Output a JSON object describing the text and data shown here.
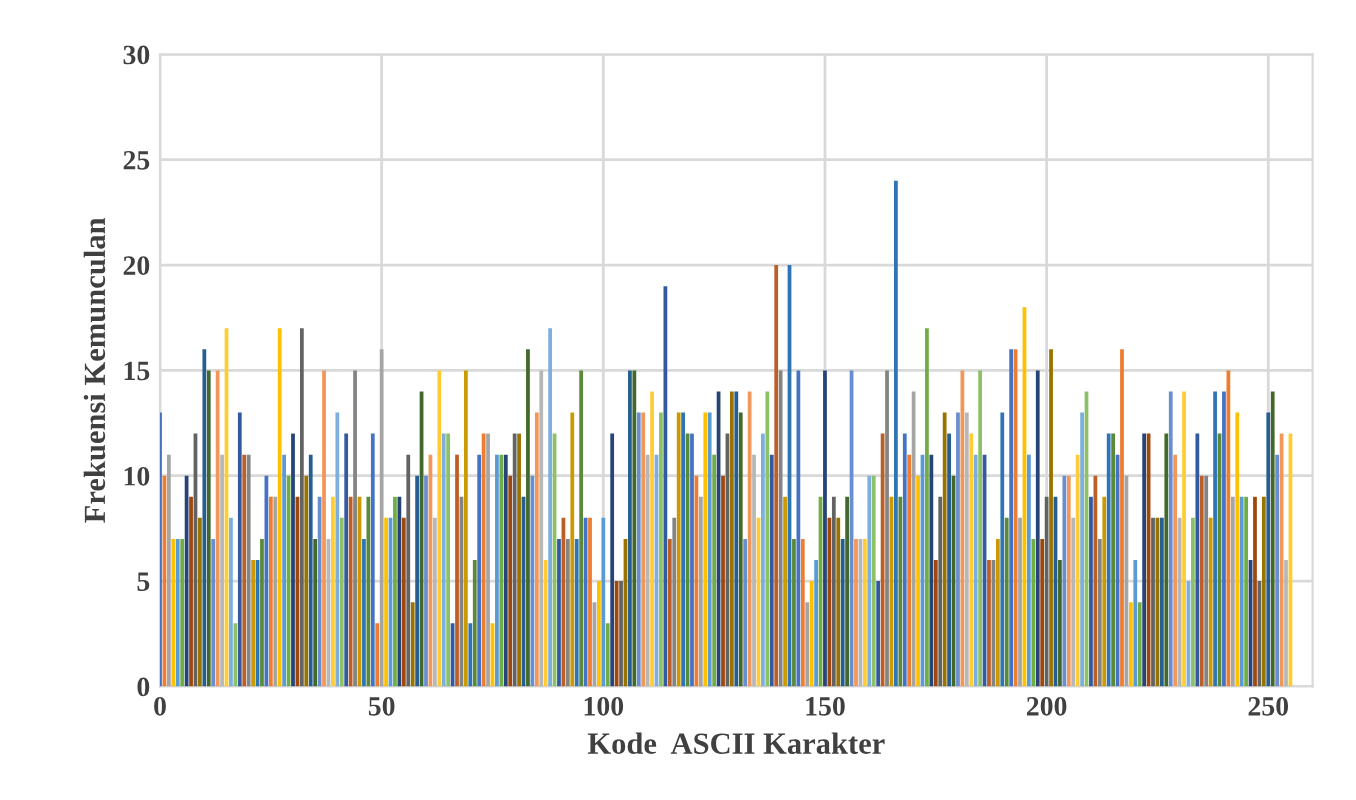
{
  "chart_data": {
    "type": "bar",
    "xlabel": "Kode  ASCII Karakter",
    "ylabel": "Frekuensi Kemunculan",
    "x": [
      0,
      1,
      2,
      3,
      4,
      5,
      6,
      7,
      8,
      9,
      10,
      11,
      12,
      13,
      14,
      15,
      16,
      17,
      18,
      19,
      20,
      21,
      22,
      23,
      24,
      25,
      26,
      27,
      28,
      29,
      30,
      31,
      32,
      33,
      34,
      35,
      36,
      37,
      38,
      39,
      40,
      41,
      42,
      43,
      44,
      45,
      46,
      47,
      48,
      49,
      50,
      51,
      52,
      53,
      54,
      55,
      56,
      57,
      58,
      59,
      60,
      61,
      62,
      63,
      64,
      65,
      66,
      67,
      68,
      69,
      70,
      71,
      72,
      73,
      74,
      75,
      76,
      77,
      78,
      79,
      80,
      81,
      82,
      83,
      84,
      85,
      86,
      87,
      88,
      89,
      90,
      91,
      92,
      93,
      94,
      95,
      96,
      97,
      98,
      99,
      100,
      101,
      102,
      103,
      104,
      105,
      106,
      107,
      108,
      109,
      110,
      111,
      112,
      113,
      114,
      115,
      116,
      117,
      118,
      119,
      120,
      121,
      122,
      123,
      124,
      125,
      126,
      127,
      128,
      129,
      130,
      131,
      132,
      133,
      134,
      135,
      136,
      137,
      138,
      139,
      140,
      141,
      142,
      143,
      144,
      145,
      146,
      147,
      148,
      149,
      150,
      151,
      152,
      153,
      154,
      155,
      156,
      157,
      158,
      159,
      160,
      161,
      162,
      163,
      164,
      165,
      166,
      167,
      168,
      169,
      170,
      171,
      172,
      173,
      174,
      175,
      176,
      177,
      178,
      179,
      180,
      181,
      182,
      183,
      184,
      185,
      186,
      187,
      188,
      189,
      190,
      191,
      192,
      193,
      194,
      195,
      196,
      197,
      198,
      199,
      200,
      201,
      202,
      203,
      204,
      205,
      206,
      207,
      208,
      209,
      210,
      211,
      212,
      213,
      214,
      215,
      216,
      217,
      218,
      219,
      220,
      221,
      222,
      223,
      224,
      225,
      226,
      227,
      228,
      229,
      230,
      231,
      232,
      233,
      234,
      235,
      236,
      237,
      238,
      239,
      240,
      241,
      242,
      243,
      244,
      245,
      246,
      247,
      248,
      249,
      250,
      251,
      252,
      253,
      254,
      255
    ],
    "values": [
      13,
      10,
      11,
      7,
      7,
      7,
      10,
      9,
      12,
      8,
      16,
      15,
      7,
      15,
      11,
      17,
      8,
      3,
      13,
      11,
      11,
      6,
      6,
      7,
      10,
      9,
      9,
      17,
      11,
      10,
      12,
      9,
      17,
      10,
      11,
      7,
      9,
      15,
      7,
      9,
      13,
      8,
      12,
      9,
      15,
      9,
      7,
      9,
      12,
      3,
      16,
      8,
      8,
      9,
      9,
      8,
      11,
      4,
      10,
      14,
      10,
      11,
      8,
      15,
      12,
      12,
      3,
      11,
      9,
      15,
      3,
      6,
      11,
      12,
      12,
      3,
      11,
      11,
      11,
      10,
      12,
      12,
      9,
      16,
      10,
      13,
      15,
      6,
      17,
      12,
      7,
      8,
      7,
      13,
      7,
      15,
      8,
      8,
      4,
      5,
      8,
      3,
      12,
      5,
      5,
      7,
      15,
      15,
      13,
      13,
      11,
      14,
      11,
      13,
      19,
      7,
      8,
      13,
      13,
      12,
      12,
      10,
      9,
      13,
      13,
      11,
      14,
      10,
      12,
      14,
      14,
      13,
      7,
      14,
      11,
      8,
      12,
      14,
      11,
      20,
      15,
      9,
      20,
      7,
      15,
      7,
      4,
      5,
      6,
      9,
      15,
      8,
      9,
      8,
      7,
      9,
      15,
      7,
      7,
      7,
      10,
      10,
      5,
      12,
      15,
      9,
      24,
      9,
      12,
      11,
      14,
      10,
      11,
      17,
      11,
      6,
      9,
      13,
      12,
      10,
      13,
      15,
      13,
      12,
      11,
      15,
      11,
      6,
      6,
      7,
      13,
      8,
      16,
      16,
      8,
      18,
      11,
      7,
      15,
      7,
      9,
      16,
      9,
      6,
      10,
      10,
      8,
      11,
      13,
      14,
      9,
      10,
      7,
      9,
      12,
      12,
      11,
      16,
      10,
      4,
      6,
      4,
      12,
      12,
      8,
      8,
      8,
      12,
      14,
      11,
      8,
      14,
      5,
      8,
      12,
      10,
      10,
      8,
      14,
      12,
      14,
      15,
      9,
      13,
      9,
      9,
      6,
      9,
      5,
      9,
      13,
      14,
      11,
      12,
      6,
      12
    ],
    "colors": [
      "#4472c4",
      "#ed7d31",
      "#a5a5a5",
      "#ffc000",
      "#5b9bd5",
      "#70ad47",
      "#264478",
      "#9e480e",
      "#636363",
      "#997300",
      "#255e91",
      "#43682b",
      "#698ed0",
      "#f1975a",
      "#b7b7b7",
      "#ffcd33",
      "#7cafdd",
      "#8cc168",
      "#335aa1",
      "#bc5f27",
      "#848484",
      "#cc9a00",
      "#2e75b5",
      "#5a8a39",
      "#4472c4",
      "#ed7d31",
      "#a5a5a5",
      "#ffc000",
      "#5b9bd5",
      "#70ad47",
      "#264478",
      "#9e480e",
      "#636363",
      "#997300",
      "#255e91",
      "#43682b",
      "#698ed0",
      "#f1975a",
      "#b7b7b7",
      "#ffcd33",
      "#7cafdd",
      "#8cc168",
      "#335aa1",
      "#bc5f27",
      "#848484",
      "#cc9a00",
      "#2e75b5",
      "#5a8a39",
      "#4472c4",
      "#ed7d31",
      "#a5a5a5",
      "#ffc000",
      "#5b9bd5",
      "#70ad47",
      "#264478",
      "#9e480e",
      "#636363",
      "#997300",
      "#255e91",
      "#43682b",
      "#698ed0",
      "#f1975a",
      "#b7b7b7",
      "#ffcd33",
      "#7cafdd",
      "#8cc168",
      "#335aa1",
      "#bc5f27",
      "#848484",
      "#cc9a00",
      "#2e75b5",
      "#5a8a39",
      "#4472c4",
      "#ed7d31",
      "#a5a5a5",
      "#ffc000",
      "#5b9bd5",
      "#70ad47",
      "#264478",
      "#9e480e",
      "#636363",
      "#997300",
      "#255e91",
      "#43682b",
      "#698ed0",
      "#f1975a",
      "#b7b7b7",
      "#ffcd33",
      "#7cafdd",
      "#8cc168",
      "#335aa1",
      "#bc5f27",
      "#848484",
      "#cc9a00",
      "#2e75b5",
      "#5a8a39",
      "#4472c4",
      "#ed7d31",
      "#a5a5a5",
      "#ffc000",
      "#5b9bd5",
      "#70ad47",
      "#264478",
      "#9e480e",
      "#636363",
      "#997300",
      "#255e91",
      "#43682b",
      "#698ed0",
      "#f1975a",
      "#b7b7b7",
      "#ffcd33",
      "#7cafdd",
      "#8cc168",
      "#335aa1",
      "#bc5f27",
      "#848484",
      "#cc9a00",
      "#2e75b5",
      "#5a8a39",
      "#4472c4",
      "#ed7d31",
      "#a5a5a5",
      "#ffc000",
      "#5b9bd5",
      "#70ad47",
      "#264478",
      "#9e480e",
      "#636363",
      "#997300",
      "#255e91",
      "#43682b",
      "#698ed0",
      "#f1975a",
      "#b7b7b7",
      "#ffcd33",
      "#7cafdd",
      "#8cc168",
      "#335aa1",
      "#bc5f27",
      "#848484",
      "#cc9a00",
      "#2e75b5",
      "#5a8a39",
      "#4472c4",
      "#ed7d31",
      "#a5a5a5",
      "#ffc000",
      "#5b9bd5",
      "#70ad47",
      "#264478",
      "#9e480e",
      "#636363",
      "#997300",
      "#255e91",
      "#43682b",
      "#698ed0",
      "#f1975a",
      "#b7b7b7",
      "#ffcd33",
      "#7cafdd",
      "#8cc168",
      "#335aa1",
      "#bc5f27",
      "#848484",
      "#cc9a00",
      "#2e75b5",
      "#5a8a39",
      "#4472c4",
      "#ed7d31",
      "#a5a5a5",
      "#ffc000",
      "#5b9bd5",
      "#70ad47",
      "#264478",
      "#9e480e",
      "#636363",
      "#997300",
      "#255e91",
      "#43682b",
      "#698ed0",
      "#f1975a",
      "#b7b7b7",
      "#ffcd33",
      "#7cafdd",
      "#8cc168",
      "#335aa1",
      "#bc5f27",
      "#848484",
      "#cc9a00",
      "#2e75b5",
      "#5a8a39",
      "#4472c4",
      "#ed7d31",
      "#a5a5a5",
      "#ffc000",
      "#5b9bd5",
      "#70ad47",
      "#264478",
      "#9e480e",
      "#636363",
      "#997300",
      "#255e91",
      "#43682b",
      "#698ed0",
      "#f1975a",
      "#b7b7b7",
      "#ffcd33",
      "#7cafdd",
      "#8cc168",
      "#335aa1",
      "#bc5f27",
      "#848484",
      "#cc9a00",
      "#2e75b5",
      "#5a8a39",
      "#4472c4",
      "#ed7d31",
      "#a5a5a5",
      "#ffc000",
      "#5b9bd5",
      "#70ad47",
      "#264478",
      "#9e480e",
      "#636363",
      "#997300",
      "#255e91",
      "#43682b",
      "#698ed0",
      "#f1975a",
      "#b7b7b7",
      "#ffcd33",
      "#7cafdd",
      "#8cc168",
      "#335aa1",
      "#bc5f27",
      "#848484",
      "#cc9a00",
      "#2e75b5",
      "#5a8a39",
      "#4472c4",
      "#ed7d31",
      "#a5a5a5",
      "#ffc000",
      "#5b9bd5",
      "#70ad47",
      "#264478",
      "#9e480e",
      "#636363",
      "#997300",
      "#255e91",
      "#43682b",
      "#698ed0",
      "#f1975a",
      "#b7b7b7",
      "#ffcd33"
    ],
    "xlim": [
      0,
      260
    ],
    "xticks": [
      0,
      50,
      100,
      150,
      200,
      250
    ],
    "ylim": [
      0,
      30
    ],
    "yticks": [
      0,
      5,
      10,
      15,
      20,
      25,
      30
    ],
    "grid": true
  }
}
